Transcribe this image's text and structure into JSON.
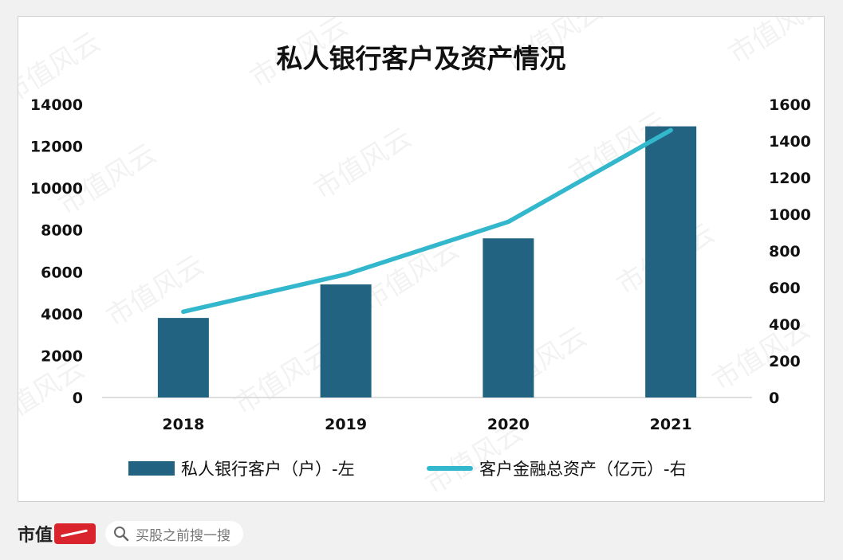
{
  "chart_data": {
    "type": "bar+line",
    "title": "私人银行客户及资产情况",
    "categories": [
      "2018",
      "2019",
      "2020",
      "2021"
    ],
    "series": [
      {
        "name": "私人银行客户（户）-左",
        "type": "bar",
        "axis": "left",
        "values": [
          3800,
          5400,
          7600,
          12950
        ],
        "color": "#226381"
      },
      {
        "name": "客户金融总资产（亿元）-右",
        "type": "line",
        "axis": "right",
        "values": [
          468,
          672,
          959,
          1459
        ],
        "color": "#33b7cc"
      }
    ],
    "y_left": {
      "ylim": [
        0,
        14000
      ],
      "ticks": [
        "0",
        "2000",
        "4000",
        "6000",
        "8000",
        "10000",
        "12000",
        "14000"
      ]
    },
    "y_right": {
      "ylim": [
        0,
        1600
      ],
      "ticks": [
        "0",
        "200",
        "400",
        "600",
        "800",
        "1000",
        "1200",
        "1400",
        "1600"
      ]
    },
    "legend_position": "bottom",
    "grid": false
  },
  "watermark": "市值风云",
  "footer": {
    "brand": "市值",
    "logo": "风云",
    "search_placeholder": "买股之前搜一搜"
  }
}
